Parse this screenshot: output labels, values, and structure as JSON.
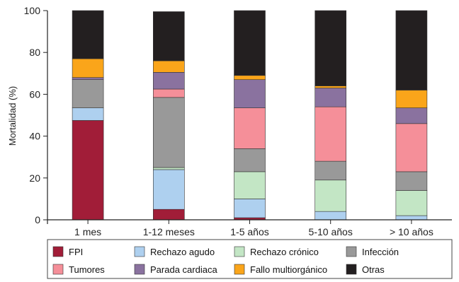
{
  "chart_data": {
    "type": "bar",
    "stacked": true,
    "title": "",
    "xlabel": "",
    "ylabel": "Mortalidad (%)",
    "ylim": [
      0,
      100
    ],
    "yticks": [
      0,
      20,
      40,
      60,
      80,
      100
    ],
    "grid": false,
    "legend_position": "bottom",
    "categories": [
      "1 mes",
      "1-12 meses",
      "1-5 años",
      "5-10 años",
      "> 10 años"
    ],
    "series": [
      {
        "name": "FPI",
        "color": "#a11d38",
        "values": [
          47.5,
          5,
          1,
          0,
          0
        ]
      },
      {
        "name": "Rechazo agudo",
        "color": "#aed0ef",
        "values": [
          6,
          19,
          9,
          4,
          2
        ]
      },
      {
        "name": "Rechazo crónico",
        "color": "#c3e6c5",
        "values": [
          0,
          1,
          13,
          15,
          12
        ]
      },
      {
        "name": "Infección",
        "color": "#999999",
        "values": [
          13.5,
          33.5,
          11,
          9,
          9
        ]
      },
      {
        "name": "Tumores",
        "color": "#f58f99",
        "values": [
          0,
          4,
          19.5,
          26,
          23
        ]
      },
      {
        "name": "Parada cardiaca",
        "color": "#8a729f",
        "values": [
          1,
          8,
          13.5,
          9,
          7.5
        ]
      },
      {
        "name": "Fallo multiorgánico",
        "color": "#faa51a",
        "values": [
          9,
          5.5,
          2,
          1,
          8.5
        ]
      },
      {
        "name": "Otras",
        "color": "#231f20",
        "values": [
          23,
          23.5,
          31,
          36,
          38
        ]
      }
    ]
  }
}
